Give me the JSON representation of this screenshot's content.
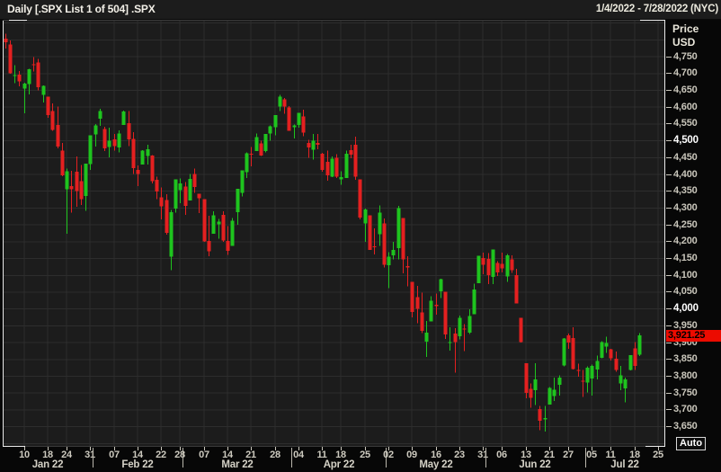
{
  "header": {
    "title": "Daily [.SPX List 1 of 504] .SPX",
    "date_range": "1/4/2022 - 7/28/2022 (NYC)"
  },
  "y_axis": {
    "unit_label_1": "Price",
    "unit_label_2": "USD",
    "auto_button_label": "Auto",
    "ticks": [
      {
        "v": 4750,
        "label": "4,750",
        "bold": false
      },
      {
        "v": 4700,
        "label": "4,700",
        "bold": false
      },
      {
        "v": 4650,
        "label": "4,650",
        "bold": false
      },
      {
        "v": 4600,
        "label": "4,600",
        "bold": false
      },
      {
        "v": 4550,
        "label": "4,550",
        "bold": false
      },
      {
        "v": 4500,
        "label": "4,500",
        "bold": true
      },
      {
        "v": 4450,
        "label": "4,450",
        "bold": false
      },
      {
        "v": 4400,
        "label": "4,400",
        "bold": false
      },
      {
        "v": 4350,
        "label": "4,350",
        "bold": false
      },
      {
        "v": 4300,
        "label": "4,300",
        "bold": false
      },
      {
        "v": 4250,
        "label": "4,250",
        "bold": false
      },
      {
        "v": 4200,
        "label": "4,200",
        "bold": false
      },
      {
        "v": 4150,
        "label": "4,150",
        "bold": false
      },
      {
        "v": 4100,
        "label": "4,100",
        "bold": false
      },
      {
        "v": 4050,
        "label": "4,050",
        "bold": false
      },
      {
        "v": 4000,
        "label": "4,000",
        "bold": true
      },
      {
        "v": 3950,
        "label": "3,950",
        "bold": false
      },
      {
        "v": 3900,
        "label": "3,900",
        "bold": false
      },
      {
        "v": 3850,
        "label": "3,850",
        "bold": false
      },
      {
        "v": 3800,
        "label": "3,800",
        "bold": false
      },
      {
        "v": 3750,
        "label": "3,750",
        "bold": false
      },
      {
        "v": 3700,
        "label": "3,700",
        "bold": false
      },
      {
        "v": 3650,
        "label": "3,650",
        "bold": false
      }
    ],
    "last_price": {
      "value": 3921.25,
      "label": "3,921.25"
    }
  },
  "chart_data": {
    "type": "candlestick",
    "instrument": ".SPX",
    "interval": "Daily",
    "ylim": [
      3590,
      4860
    ],
    "grid": true,
    "x_axis": {
      "slots": 140,
      "month_groups": [
        {
          "label": "Jan 22",
          "start": 0,
          "end": 19,
          "ticks": [
            [
              4,
              "10"
            ],
            [
              9,
              "18"
            ],
            [
              13,
              "24"
            ],
            [
              18,
              "31"
            ]
          ]
        },
        {
          "label": "Feb 22",
          "start": 19,
          "end": 38,
          "ticks": [
            [
              23,
              "07"
            ],
            [
              28,
              "14"
            ],
            [
              33,
              "22"
            ],
            [
              37,
              "28"
            ]
          ]
        },
        {
          "label": "Mar 22",
          "start": 38,
          "end": 61,
          "ticks": [
            [
              42,
              "07"
            ],
            [
              47,
              "14"
            ],
            [
              52,
              "21"
            ],
            [
              57,
              "28"
            ]
          ]
        },
        {
          "label": "Apr 22",
          "start": 61,
          "end": 81,
          "ticks": [
            [
              62,
              "04"
            ],
            [
              67,
              "11"
            ],
            [
              71,
              "18"
            ],
            [
              76,
              "25"
            ]
          ]
        },
        {
          "label": "May 22",
          "start": 81,
          "end": 102,
          "ticks": [
            [
              81,
              "02"
            ],
            [
              86,
              "09"
            ],
            [
              91,
              "16"
            ],
            [
              96,
              "23"
            ],
            [
              101,
              "31"
            ]
          ]
        },
        {
          "label": "Jun 22",
          "start": 102,
          "end": 123,
          "ticks": [
            [
              105,
              "06"
            ],
            [
              110,
              "13"
            ],
            [
              115,
              "21"
            ],
            [
              119,
              "27"
            ]
          ]
        },
        {
          "label": "Jul 22",
          "start": 123,
          "end": 140,
          "ticks": [
            [
              124,
              "05"
            ],
            [
              128,
              "11"
            ],
            [
              133,
              "18"
            ],
            [
              138,
              "25"
            ]
          ]
        }
      ]
    },
    "candles_format": [
      "date",
      "open",
      "high",
      "low",
      "close"
    ],
    "candles": [
      [
        "01-04",
        4804,
        4818,
        4774,
        4793
      ],
      [
        "01-05",
        4787,
        4798,
        4700,
        4701
      ],
      [
        "01-06",
        4693,
        4725,
        4671,
        4696
      ],
      [
        "01-07",
        4697,
        4708,
        4662,
        4677
      ],
      [
        "01-10",
        4655,
        4673,
        4582,
        4670
      ],
      [
        "01-11",
        4669,
        4714,
        4638,
        4713
      ],
      [
        "01-12",
        4728,
        4749,
        4706,
        4726
      ],
      [
        "01-13",
        4733,
        4744,
        4650,
        4659
      ],
      [
        "01-14",
        4637,
        4665,
        4614,
        4663
      ],
      [
        "01-18",
        4632,
        4632,
        4568,
        4577
      ],
      [
        "01-19",
        4588,
        4611,
        4530,
        4533
      ],
      [
        "01-20",
        4547,
        4602,
        4477,
        4483
      ],
      [
        "01-21",
        4471,
        4494,
        4395,
        4398
      ],
      [
        "01-24",
        4356,
        4417,
        4223,
        4410
      ],
      [
        "01-25",
        4366,
        4411,
        4287,
        4356
      ],
      [
        "01-26",
        4408,
        4453,
        4304,
        4350
      ],
      [
        "01-27",
        4380,
        4428,
        4309,
        4326
      ],
      [
        "01-28",
        4336,
        4432,
        4292,
        4432
      ],
      [
        "01-31",
        4431,
        4516,
        4414,
        4516
      ],
      [
        "02-01",
        4519,
        4550,
        4483,
        4546
      ],
      [
        "02-02",
        4566,
        4595,
        4544,
        4589
      ],
      [
        "02-03",
        4535,
        4542,
        4470,
        4477
      ],
      [
        "02-04",
        4482,
        4539,
        4451,
        4501
      ],
      [
        "02-07",
        4505,
        4521,
        4471,
        4484
      ],
      [
        "02-08",
        4480,
        4531,
        4465,
        4522
      ],
      [
        "02-09",
        4547,
        4590,
        4547,
        4587
      ],
      [
        "02-10",
        4553,
        4588,
        4484,
        4504
      ],
      [
        "02-11",
        4506,
        4526,
        4401,
        4419
      ],
      [
        "02-14",
        4413,
        4427,
        4365,
        4401
      ],
      [
        "02-15",
        4429,
        4472,
        4429,
        4471
      ],
      [
        "02-16",
        4455,
        4489,
        4429,
        4475
      ],
      [
        "02-17",
        4456,
        4457,
        4373,
        4380
      ],
      [
        "02-18",
        4384,
        4394,
        4327,
        4349
      ],
      [
        "02-22",
        4332,
        4362,
        4267,
        4305
      ],
      [
        "02-23",
        4324,
        4341,
        4221,
        4226
      ],
      [
        "02-24",
        4155,
        4295,
        4115,
        4288
      ],
      [
        "02-25",
        4298,
        4385,
        4286,
        4385
      ],
      [
        "02-28",
        4354,
        4388,
        4315,
        4374
      ],
      [
        "03-01",
        4364,
        4378,
        4280,
        4306
      ],
      [
        "03-02",
        4322,
        4401,
        4322,
        4387
      ],
      [
        "03-03",
        4401,
        4417,
        4345,
        4363
      ],
      [
        "03-04",
        4342,
        4342,
        4285,
        4329
      ],
      [
        "03-07",
        4327,
        4327,
        4199,
        4201
      ],
      [
        "03-08",
        4202,
        4277,
        4157,
        4171
      ],
      [
        "03-09",
        4223,
        4291,
        4223,
        4278
      ],
      [
        "03-10",
        4252,
        4268,
        4209,
        4260
      ],
      [
        "03-11",
        4280,
        4291,
        4200,
        4204
      ],
      [
        "03-14",
        4202,
        4247,
        4161,
        4173
      ],
      [
        "03-15",
        4188,
        4271,
        4187,
        4262
      ],
      [
        "03-16",
        4288,
        4358,
        4251,
        4358
      ],
      [
        "03-17",
        4345,
        4412,
        4335,
        4412
      ],
      [
        "03-18",
        4407,
        4465,
        4390,
        4463
      ],
      [
        "03-21",
        4462,
        4482,
        4424,
        4461
      ],
      [
        "03-22",
        4469,
        4522,
        4469,
        4511
      ],
      [
        "03-23",
        4493,
        4501,
        4455,
        4456
      ],
      [
        "03-24",
        4469,
        4520,
        4465,
        4520
      ],
      [
        "03-25",
        4522,
        4546,
        4501,
        4543
      ],
      [
        "03-28",
        4541,
        4576,
        4517,
        4576
      ],
      [
        "03-29",
        4602,
        4637,
        4589,
        4632
      ],
      [
        "03-30",
        4624,
        4627,
        4581,
        4602
      ],
      [
        "03-31",
        4599,
        4603,
        4530,
        4530
      ],
      [
        "04-01",
        4540,
        4548,
        4507,
        4546
      ],
      [
        "04-04",
        4547,
        4583,
        4539,
        4583
      ],
      [
        "04-05",
        4572,
        4593,
        4514,
        4525
      ],
      [
        "04-06",
        4494,
        4503,
        4450,
        4481
      ],
      [
        "04-07",
        4474,
        4521,
        4444,
        4500
      ],
      [
        "04-08",
        4494,
        4520,
        4475,
        4488
      ],
      [
        "04-11",
        4462,
        4464,
        4408,
        4413
      ],
      [
        "04-12",
        4437,
        4471,
        4382,
        4397
      ],
      [
        "04-13",
        4393,
        4453,
        4392,
        4447
      ],
      [
        "04-14",
        4449,
        4460,
        4390,
        4393
      ],
      [
        "04-18",
        4385,
        4410,
        4370,
        4392
      ],
      [
        "04-19",
        4390,
        4471,
        4390,
        4462
      ],
      [
        "04-20",
        4472,
        4488,
        4448,
        4459
      ],
      [
        "04-21",
        4489,
        4512,
        4384,
        4393
      ],
      [
        "04-22",
        4385,
        4385,
        4267,
        4272
      ],
      [
        "04-25",
        4255,
        4299,
        4200,
        4296
      ],
      [
        "04-26",
        4278,
        4278,
        4175,
        4175
      ],
      [
        "04-27",
        4186,
        4240,
        4162,
        4184
      ],
      [
        "04-28",
        4222,
        4308,
        4188,
        4287
      ],
      [
        "04-29",
        4254,
        4269,
        4124,
        4132
      ],
      [
        "05-02",
        4130,
        4169,
        4062,
        4155
      ],
      [
        "05-03",
        4159,
        4200,
        4147,
        4175
      ],
      [
        "05-04",
        4181,
        4307,
        4148,
        4300
      ],
      [
        "05-05",
        4270,
        4270,
        4106,
        4147
      ],
      [
        "05-06",
        4128,
        4157,
        4067,
        4123
      ],
      [
        "05-09",
        4081,
        4081,
        3975,
        3991
      ],
      [
        "05-10",
        4035,
        4068,
        3958,
        4001
      ],
      [
        "05-11",
        3990,
        4049,
        3928,
        3935
      ],
      [
        "05-12",
        3903,
        3964,
        3858,
        3930
      ],
      [
        "05-13",
        3963,
        4038,
        3963,
        4024
      ],
      [
        "05-16",
        4013,
        4046,
        3983,
        4008
      ],
      [
        "05-17",
        4052,
        4090,
        4033,
        4089
      ],
      [
        "05-18",
        4051,
        4051,
        3911,
        3924
      ],
      [
        "05-19",
        3899,
        3945,
        3876,
        3901
      ],
      [
        "05-20",
        3927,
        3943,
        3810,
        3901
      ],
      [
        "05-23",
        3919,
        3981,
        3909,
        3974
      ],
      [
        "05-24",
        3942,
        3955,
        3875,
        3941
      ],
      [
        "05-25",
        3929,
        3999,
        3925,
        3979
      ],
      [
        "05-26",
        3984,
        4075,
        3984,
        4058
      ],
      [
        "05-27",
        4077,
        4158,
        4077,
        4158
      ],
      [
        "05-31",
        4151,
        4168,
        4104,
        4132
      ],
      [
        "06-01",
        4149,
        4166,
        4074,
        4101
      ],
      [
        "06-02",
        4095,
        4177,
        4074,
        4177
      ],
      [
        "06-03",
        4137,
        4142,
        4098,
        4109
      ],
      [
        "06-06",
        4134,
        4168,
        4109,
        4121
      ],
      [
        "06-07",
        4096,
        4164,
        4080,
        4160
      ],
      [
        "06-08",
        4147,
        4160,
        4107,
        4116
      ],
      [
        "06-09",
        4101,
        4119,
        4017,
        4017
      ],
      [
        "06-10",
        3974,
        3974,
        3900,
        3901
      ],
      [
        "06-13",
        3838,
        3839,
        3734,
        3750
      ],
      [
        "06-14",
        3762,
        3778,
        3706,
        3736
      ],
      [
        "06-15",
        3759,
        3838,
        3714,
        3790
      ],
      [
        "06-16",
        3702,
        3712,
        3639,
        3667
      ],
      [
        "06-17",
        3672,
        3712,
        3636,
        3675
      ],
      [
        "06-21",
        3716,
        3768,
        3716,
        3765
      ],
      [
        "06-22",
        3741,
        3796,
        3727,
        3760
      ],
      [
        "06-23",
        3775,
        3802,
        3743,
        3796
      ],
      [
        "06-24",
        3832,
        3914,
        3829,
        3912
      ],
      [
        "06-27",
        3921,
        3927,
        3882,
        3900
      ],
      [
        "06-28",
        3913,
        3946,
        3820,
        3821
      ],
      [
        "06-29",
        3819,
        3837,
        3799,
        3818
      ],
      [
        "06-30",
        3786,
        3819,
        3738,
        3785
      ],
      [
        "07-01",
        3781,
        3829,
        3752,
        3825
      ],
      [
        "07-05",
        3793,
        3834,
        3742,
        3831
      ],
      [
        "07-06",
        3820,
        3861,
        3791,
        3845
      ],
      [
        "07-07",
        3855,
        3904,
        3853,
        3902
      ],
      [
        "07-08",
        3888,
        3918,
        3869,
        3899
      ],
      [
        "07-11",
        3880,
        3881,
        3847,
        3854
      ],
      [
        "07-12",
        3852,
        3874,
        3813,
        3819
      ],
      [
        "07-13",
        3779,
        3830,
        3759,
        3802
      ],
      [
        "07-14",
        3764,
        3796,
        3722,
        3790
      ],
      [
        "07-15",
        3818,
        3863,
        3817,
        3863
      ],
      [
        "07-18",
        3883,
        3902,
        3818,
        3831
      ],
      [
        "07-19",
        3864,
        3928,
        3860,
        3921.25
      ]
    ]
  },
  "colors": {
    "up": "#1ec41e",
    "down": "#e42020",
    "plot_bg": "#1c1c1c",
    "grid": "#2d2d2d",
    "frame_light": "#e9e9e9",
    "frame_dark": "#3a3a3a",
    "axis_text": "#cdcabf",
    "last_price_bg": "#ec0b00"
  }
}
